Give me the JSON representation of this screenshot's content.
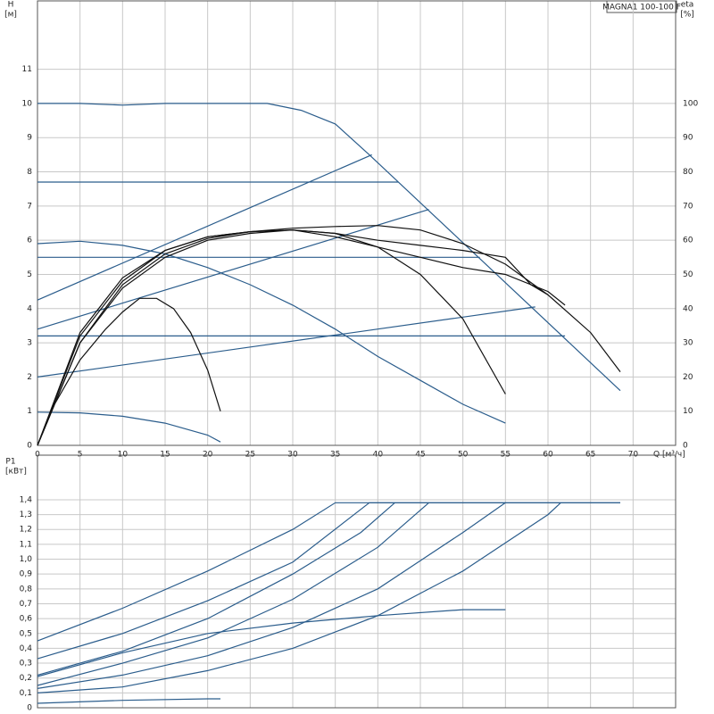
{
  "chart_data": [
    {
      "type": "line",
      "title": "MAGNA1 100-100 F",
      "ylabel": "H",
      "yunit": "[м]",
      "y2label": "eta",
      "y2unit": "[%]",
      "xlabel": "Q [м³/ч]",
      "xlim": [
        0,
        75
      ],
      "xticks": [
        0,
        5,
        10,
        15,
        20,
        25,
        30,
        35,
        40,
        45,
        50,
        55,
        60,
        65,
        70
      ],
      "ylim": [
        0,
        13
      ],
      "yticks": [
        0,
        1,
        2,
        3,
        4,
        5,
        6,
        7,
        8,
        9,
        10,
        11
      ],
      "y2lim": [
        0,
        130
      ],
      "y2ticks": [
        0,
        10,
        20,
        30,
        40,
        50,
        60,
        70,
        80,
        90,
        100
      ],
      "grid": true,
      "series": [
        {
          "color": "#2b5d8c",
          "x": [
            0,
            5,
            10,
            15,
            27,
            31,
            35,
            39,
            68.5
          ],
          "values": [
            10,
            10,
            9.95,
            10,
            10,
            9.8,
            9.4,
            8.5,
            1.6
          ]
        },
        {
          "color": "#2b5d8c",
          "x": [
            0,
            42.4
          ],
          "values": [
            7.7,
            7.7
          ]
        },
        {
          "color": "#2b5d8c",
          "x": [
            0,
            52
          ],
          "values": [
            5.5,
            5.5
          ]
        },
        {
          "color": "#2b5d8c",
          "x": [
            0,
            62
          ],
          "values": [
            3.2,
            3.2
          ]
        },
        {
          "color": "#2b5d8c",
          "x": [
            0,
            39.3
          ],
          "values": [
            4.25,
            8.5
          ]
        },
        {
          "color": "#2b5d8c",
          "x": [
            0,
            46
          ],
          "values": [
            3.4,
            6.9
          ]
        },
        {
          "color": "#2b5d8c",
          "x": [
            0,
            58.5
          ],
          "values": [
            2.0,
            4.05
          ]
        },
        {
          "color": "#2b5d8c",
          "x": [
            0,
            5,
            10,
            15,
            20,
            25,
            30,
            35,
            40,
            45,
            50,
            55
          ],
          "values": [
            5.9,
            5.97,
            5.85,
            5.6,
            5.2,
            4.7,
            4.1,
            3.4,
            2.6,
            1.9,
            1.2,
            0.65
          ]
        },
        {
          "color": "#2b5d8c",
          "x": [
            0,
            5,
            10,
            15,
            20,
            21.5
          ],
          "values": [
            0.97,
            0.95,
            0.85,
            0.65,
            0.3,
            0.1
          ]
        },
        {
          "color": "#111111",
          "axis": "y2",
          "x": [
            0,
            2,
            5,
            8,
            10,
            12,
            14,
            16,
            18,
            20,
            21.5
          ],
          "values": [
            0,
            12,
            25,
            34,
            39,
            43,
            43,
            40,
            33,
            22,
            10
          ]
        },
        {
          "color": "#111111",
          "axis": "y2",
          "x": [
            0,
            5,
            10,
            15,
            20,
            25,
            30,
            35,
            40,
            45,
            50,
            55
          ],
          "values": [
            0,
            30,
            46,
            55,
            60,
            62,
            63,
            62,
            58,
            50,
            37,
            15
          ]
        },
        {
          "color": "#111111",
          "axis": "y2",
          "x": [
            0,
            5,
            10,
            15,
            20,
            25,
            30,
            35,
            40,
            45,
            50,
            55,
            60,
            62
          ],
          "values": [
            0,
            32,
            48,
            57,
            61,
            62.5,
            63,
            61,
            58,
            55,
            52,
            50,
            45,
            41
          ]
        },
        {
          "color": "#111111",
          "axis": "y2",
          "x": [
            0,
            5,
            10,
            15,
            20,
            25,
            30,
            35,
            40,
            45,
            50,
            55,
            58,
            60
          ],
          "values": [
            0,
            33,
            49,
            57,
            61,
            62.5,
            63,
            62,
            60,
            58.5,
            57,
            55,
            47,
            44
          ]
        },
        {
          "color": "#111111",
          "axis": "y2",
          "x": [
            0,
            5,
            10,
            15,
            20,
            25,
            30,
            35,
            40,
            45,
            50,
            55,
            60,
            65,
            68.5
          ],
          "values": [
            0,
            30,
            47,
            56,
            60.5,
            62.5,
            63.5,
            64,
            64.3,
            63,
            59,
            53,
            44,
            33,
            21.5
          ]
        }
      ]
    },
    {
      "type": "line",
      "ylabel": "P1",
      "yunit": "[кВт]",
      "xlim": [
        0,
        75
      ],
      "ylim": [
        0,
        1.7
      ],
      "grid": true,
      "yticks": [
        0,
        {
          "value": 0.1,
          "label": "0,1"
        },
        {
          "value": 0.2,
          "label": "0,2"
        },
        {
          "value": 0.3,
          "label": "0,3"
        },
        {
          "value": 0.4,
          "label": "0,4"
        },
        {
          "value": 0.5,
          "label": "0,5"
        },
        {
          "value": 0.6,
          "label": "0,6"
        },
        {
          "value": 0.7,
          "label": "0,7"
        },
        {
          "value": 0.8,
          "label": "0,8"
        },
        {
          "value": 0.9,
          "label": "0,9"
        },
        {
          "value": 1.0,
          "label": "1,0"
        },
        {
          "value": 1.1,
          "label": "1,1"
        },
        {
          "value": 1.2,
          "label": "1,2"
        },
        {
          "value": 1.3,
          "label": "1,3"
        },
        {
          "value": 1.4,
          "label": "1,4"
        }
      ],
      "series": [
        {
          "color": "#2b5d8c",
          "x": [
            0,
            10,
            20,
            30,
            35,
            68.5
          ],
          "values": [
            0.45,
            0.67,
            0.92,
            1.2,
            1.38,
            1.38
          ]
        },
        {
          "color": "#2b5d8c",
          "x": [
            0,
            10,
            20,
            30,
            39,
            68.5
          ],
          "values": [
            0.33,
            0.5,
            0.72,
            0.98,
            1.38,
            1.38
          ]
        },
        {
          "color": "#2b5d8c",
          "x": [
            0,
            10,
            20,
            30,
            38,
            42
          ],
          "values": [
            0.22,
            0.38,
            0.6,
            0.9,
            1.18,
            1.38
          ]
        },
        {
          "color": "#2b5d8c",
          "x": [
            0,
            10,
            20,
            30,
            40,
            46
          ],
          "values": [
            0.15,
            0.3,
            0.47,
            0.73,
            1.08,
            1.38
          ]
        },
        {
          "color": "#2b5d8c",
          "x": [
            0,
            10,
            20,
            30,
            40,
            50,
            55
          ],
          "values": [
            0.13,
            0.22,
            0.35,
            0.54,
            0.8,
            1.18,
            1.38
          ]
        },
        {
          "color": "#2b5d8c",
          "x": [
            0,
            10,
            20,
            30,
            40,
            50,
            60,
            61.5
          ],
          "values": [
            0.1,
            0.14,
            0.25,
            0.4,
            0.62,
            0.92,
            1.3,
            1.38
          ]
        },
        {
          "color": "#2b5d8c",
          "x": [
            0,
            10,
            20,
            30,
            40,
            50,
            55
          ],
          "values": [
            0.21,
            0.37,
            0.5,
            0.57,
            0.62,
            0.66,
            0.66
          ]
        },
        {
          "color": "#2b5d8c",
          "x": [
            0,
            10,
            20,
            21.5
          ],
          "values": [
            0.03,
            0.05,
            0.06,
            0.06
          ]
        }
      ]
    }
  ]
}
